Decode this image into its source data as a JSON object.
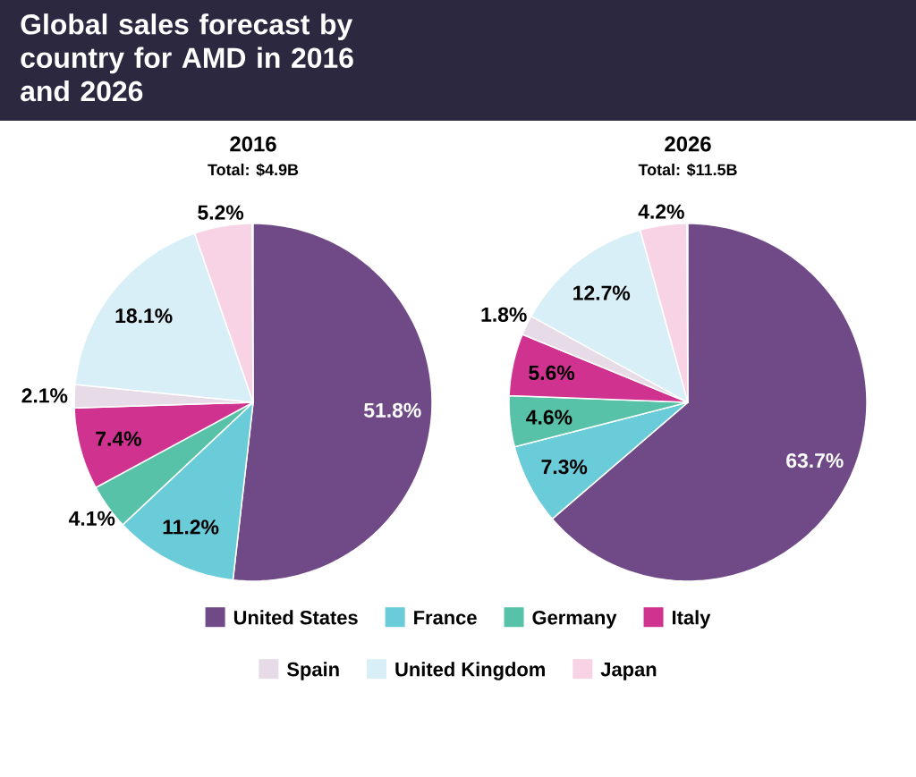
{
  "chart_data": {
    "type": "pie",
    "title": "Global sales forecast by country for AMD in 2016 and 2026",
    "categories": [
      "United States",
      "France",
      "Germany",
      "Italy",
      "Spain",
      "United Kingdom",
      "Japan"
    ],
    "colors": [
      "#6f4a87",
      "#6acbd9",
      "#57c2a7",
      "#d03290",
      "#e6dbe7",
      "#d9eff7",
      "#f8d3e5"
    ],
    "series": [
      {
        "name": "2016",
        "values": [
          51.8,
          11.2,
          4.1,
          7.4,
          2.1,
          18.1,
          5.2
        ],
        "value_labels": [
          "51.8%",
          "11.2%",
          "4.1%",
          "7.4%",
          "2.1%",
          "18.1%",
          "5.2%"
        ]
      },
      {
        "name": "2026",
        "values": [
          63.7,
          7.3,
          4.6,
          5.6,
          1.8,
          12.7,
          4.2
        ],
        "value_labels": [
          "63.7%",
          "7.3%",
          "4.6%",
          "5.6%",
          "1.8%",
          "12.7%",
          "4.2%"
        ]
      }
    ],
    "annotations": [
      "Total: $4.9B",
      "Total: $11.5B"
    ],
    "legend": "bottom"
  }
}
